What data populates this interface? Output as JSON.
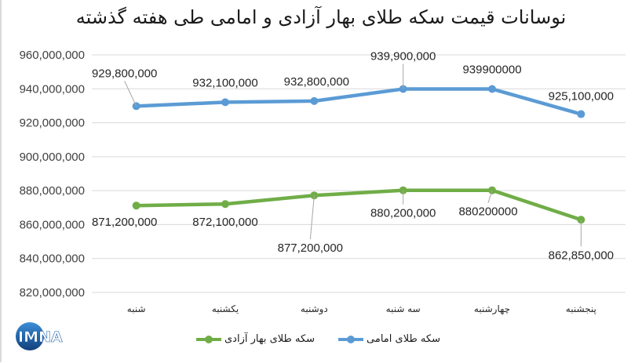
{
  "title": "نوسانات قیمت سکه طلای بهار آزادی و امامی طی هفته گذشته",
  "logo": {
    "text": "IMNA",
    "colors": {
      "circle": "#1f5fa8",
      "text": "#ffffff"
    }
  },
  "legend": {
    "items": [
      {
        "label": "سکه طلای امامی",
        "color": "#5b9bd5"
      },
      {
        "label": "سکه طلای بهار آزادی",
        "color": "#70ad47"
      }
    ]
  },
  "chart_data": {
    "type": "line",
    "title": "نوسانات قیمت سکه طلای بهار آزادی و امامی طی هفته گذشته",
    "xlabel": "",
    "ylabel": "",
    "categories": [
      "شنبه",
      "یکشنبه",
      "دوشنبه",
      "سه شنبه",
      "چهارشنبه",
      "پنجشنبه"
    ],
    "ylim": [
      820000000,
      960000000
    ],
    "yticks": [
      "820,000,000",
      "840,000,000",
      "860,000,000",
      "880,000,000",
      "900,000,000",
      "920,000,000",
      "940,000,000",
      "960,000,000"
    ],
    "grid": true,
    "legend_position": "bottom",
    "series": [
      {
        "name": "سکه طلای امامی",
        "color": "#5b9bd5",
        "values": [
          929800000,
          932100000,
          932800000,
          939900000,
          939900000,
          925100000
        ],
        "labels": [
          "929,800,000",
          "932,100,000",
          "932,800,000",
          "939,900,000",
          "939900000",
          "925,100,000"
        ]
      },
      {
        "name": "سکه طلای بهار آزادی",
        "color": "#70ad47",
        "values": [
          871200000,
          872100000,
          877200000,
          880200000,
          880200000,
          862850000
        ],
        "labels": [
          "871,200,000",
          "872,100,000",
          "877,200,000",
          "880,200,000",
          "880200000",
          "862,850,000"
        ]
      }
    ]
  }
}
